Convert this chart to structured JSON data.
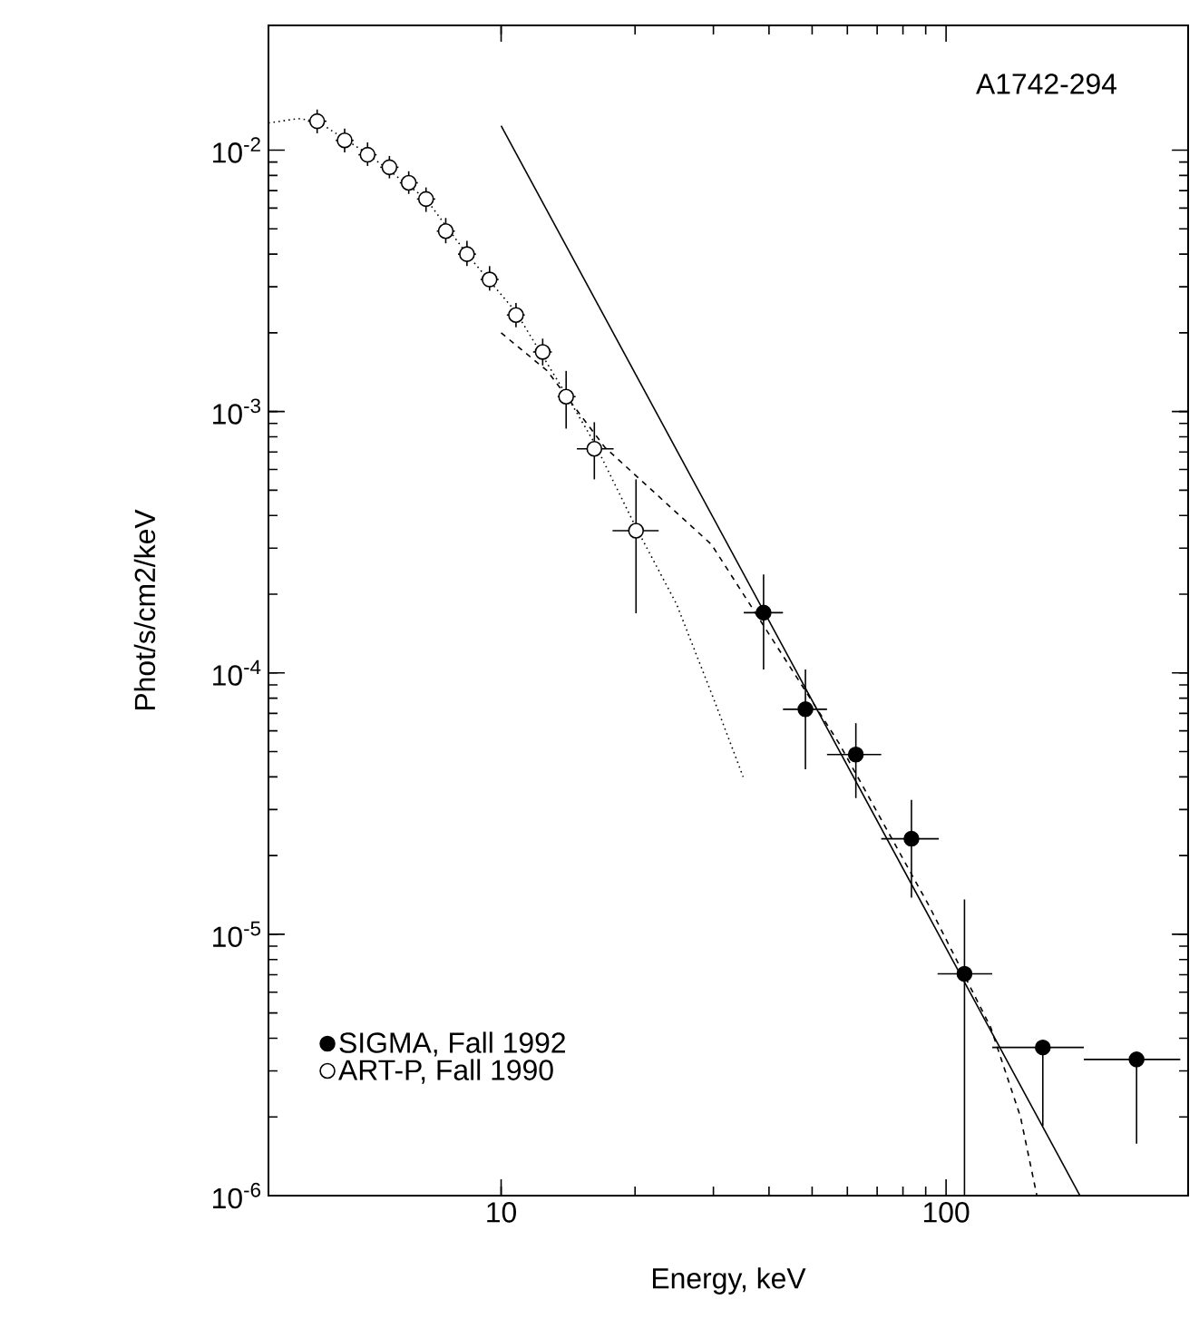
{
  "chart_data": {
    "type": "scatter",
    "title": "A1742-294",
    "xlabel": "Energy, keV",
    "ylabel": "Phot/s/cm2/keV",
    "log": "xy",
    "xlim": [
      3,
      350
    ],
    "ylim": [
      1e-06,
      0.03
    ],
    "xticks": [
      10,
      100
    ],
    "yticks": [
      {
        "value": 1e-06,
        "label": "10$^{-6}$"
      },
      {
        "value": 1e-05,
        "label": "10$^{-5}$"
      },
      {
        "value": 0.0001,
        "label": "10$^{-4}$"
      },
      {
        "value": 0.001,
        "label": "10$^{-3}$"
      },
      {
        "value": 0.01,
        "label": "10$^{-2}$"
      }
    ],
    "legend": "bottom left",
    "grid": false,
    "series": [
      {
        "name": "SIGMA, Fall 1992",
        "marker": "circle",
        "color": "#000000",
        "x": [
          38.9,
          48.3,
          62.7,
          83.6,
          110,
          165,
          268
        ],
        "values": [
          0.00017,
          7.26e-05,
          4.87e-05,
          2.32e-05,
          7.06e-06,
          3.69e-06,
          3.32e-06
        ],
        "errors": [
          [
            0.000103,
            0.000238
          ],
          [
            4.28e-05,
            0.000103
          ],
          [
            3.32e-05,
            6.42e-05
          ],
          [
            1.38e-05,
            3.27e-05
          ],
          [
            1e-06,
            1.36e-05
          ],
          [
            1.85e-06,
            3.69e-06
          ],
          [
            1.58e-06,
            3.32e-06
          ]
        ],
        "xerrors": [
          [
            35.1,
            43.0
          ],
          [
            43.0,
            54.0
          ],
          [
            54.0,
            71.5
          ],
          [
            71.5,
            96.3
          ],
          [
            95.7,
            127
          ],
          [
            127,
            204
          ],
          [
            204,
            336
          ]
        ]
      },
      {
        "name": "ART-P, Fall 1990",
        "marker": "circle",
        "color": "#ffffff",
        "x": [
          3.86,
          4.45,
          5.01,
          5.61,
          6.2,
          6.78,
          7.51,
          8.38,
          9.42,
          10.8,
          12.4,
          14.0,
          16.2,
          20.1
        ],
        "values": [
          0.0129,
          0.0109,
          0.0096,
          0.0086,
          0.0075,
          0.0065,
          0.0049,
          0.004,
          0.0032,
          0.00234,
          0.00169,
          0.00114,
          0.00072,
          0.00035
        ],
        "errors": [
          [
            0.0116,
            0.0143
          ],
          [
            0.0098,
            0.0121
          ],
          [
            0.0087,
            0.0107
          ],
          [
            0.0078,
            0.0095
          ],
          [
            0.0068,
            0.0083
          ],
          [
            0.0058,
            0.0072
          ],
          [
            0.0044,
            0.0055
          ],
          [
            0.0036,
            0.0045
          ],
          [
            0.0029,
            0.0036
          ],
          [
            0.0021,
            0.0026
          ],
          [
            0.0015,
            0.0019
          ],
          [
            0.00086,
            0.00143
          ],
          [
            0.00055,
            0.00091
          ],
          [
            0.000169,
            0.00055
          ]
        ],
        "xerrors": [
          [
            3.68,
            4.05
          ],
          [
            4.25,
            4.66
          ],
          [
            4.78,
            5.25
          ],
          [
            5.35,
            5.88
          ],
          [
            5.92,
            6.5
          ],
          [
            6.47,
            7.11
          ],
          [
            7.17,
            7.87
          ],
          [
            8.0,
            8.78
          ],
          [
            8.99,
            9.87
          ],
          [
            10.3,
            11.3
          ],
          [
            11.8,
            13.0
          ],
          [
            13.4,
            14.7
          ],
          [
            14.8,
            17.9
          ],
          [
            17.8,
            22.6
          ]
        ]
      },
      {
        "type": "line",
        "line_style": "solid",
        "marker": "none",
        "color": "#000000",
        "x": [
          10,
          200
        ],
        "values": [
          0.0124,
          1e-06
        ]
      },
      {
        "type": "line",
        "line_style": "dashed",
        "marker": "none",
        "color": "#000000",
        "x": [
          10,
          12.7,
          17.1,
          29.7,
          57.4,
          91.9,
          126,
          147,
          160
        ],
        "values": [
          0.002,
          0.00143,
          0.00073,
          0.00031,
          5.4e-05,
          1.27e-05,
          4.4e-06,
          2e-06,
          1e-06
        ]
      },
      {
        "type": "line",
        "line_style": "dotted",
        "marker": "none",
        "color": "#000000",
        "x": [
          3.0,
          3.5,
          3.86,
          5.0,
          6.78,
          8.38,
          10.8,
          14.0,
          16.2,
          20.1,
          24.8,
          30,
          35
        ],
        "values": [
          0.0127,
          0.0132,
          0.0129,
          0.0097,
          0.0065,
          0.004,
          0.0024,
          0.00116,
          0.00076,
          0.00036,
          0.000183,
          8e-05,
          4e-05
        ]
      }
    ]
  }
}
